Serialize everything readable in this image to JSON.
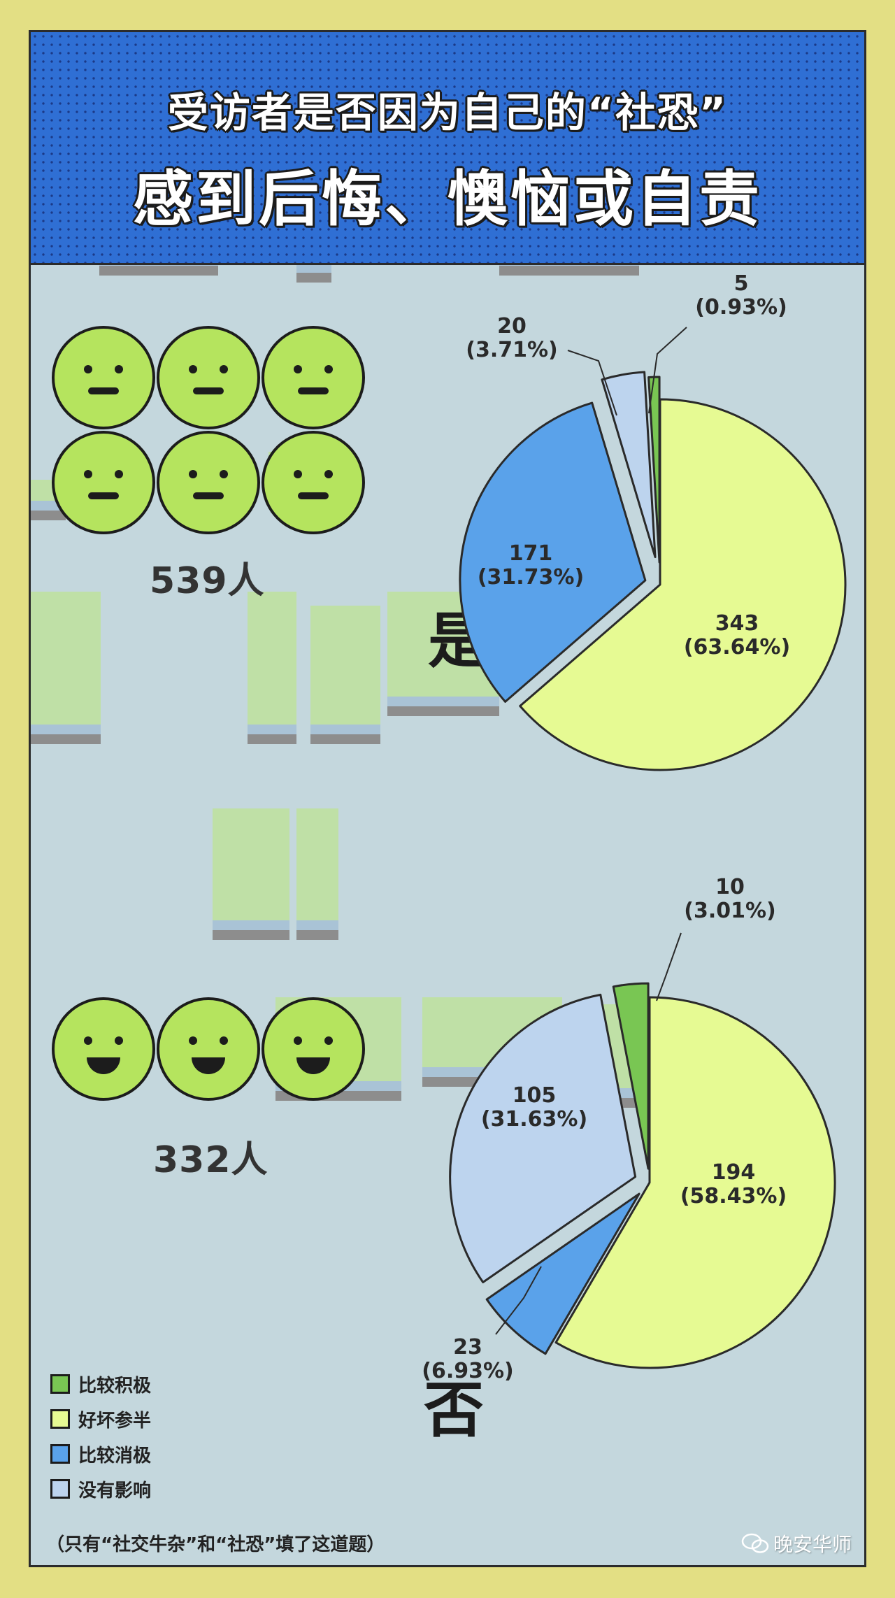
{
  "header": {
    "title_line1": "受访者是否因为自己的“社恐”",
    "title_line2": "感到后悔、懊恼或自责"
  },
  "colors": {
    "比较积极": "#79c653",
    "好坏参半": "#e6fa93",
    "比较消极": "#5aa2ea",
    "没有影响": "#bdd4ee"
  },
  "chart_data": [
    {
      "type": "pie",
      "title": "是",
      "total_label": "539人",
      "slices": [
        {
          "category": "好坏参半",
          "value": 343,
          "label_count": "343",
          "label_pct": "(63.64%)"
        },
        {
          "category": "比较消极",
          "value": 171,
          "label_count": "171",
          "label_pct": "(31.73%)"
        },
        {
          "category": "没有影响",
          "value": 20,
          "label_count": "20",
          "label_pct": "(3.71%)"
        },
        {
          "category": "比较积极",
          "value": 5,
          "label_count": "5",
          "label_pct": "(0.93%)"
        }
      ]
    },
    {
      "type": "pie",
      "title": "否",
      "total_label": "332人",
      "slices": [
        {
          "category": "好坏参半",
          "value": 194,
          "label_count": "194",
          "label_pct": "(58.43%)"
        },
        {
          "category": "比较消极",
          "value": 23,
          "label_count": "23",
          "label_pct": "(6.93%)"
        },
        {
          "category": "没有影响",
          "value": 105,
          "label_count": "105",
          "label_pct": "(31.63%)"
        },
        {
          "category": "比较积极",
          "value": 10,
          "label_count": "10",
          "label_pct": "(3.01%)"
        }
      ]
    }
  ],
  "legend": [
    {
      "label": "比较积极",
      "color": "#79c653"
    },
    {
      "label": "好坏参半",
      "color": "#e6fa93"
    },
    {
      "label": "比较消极",
      "color": "#5aa2ea"
    },
    {
      "label": "没有影响",
      "color": "#bdd4ee"
    }
  ],
  "footnote": "（只有“社交牛杂”和“社恐”填了这道题）",
  "watermark": "晚安华师"
}
